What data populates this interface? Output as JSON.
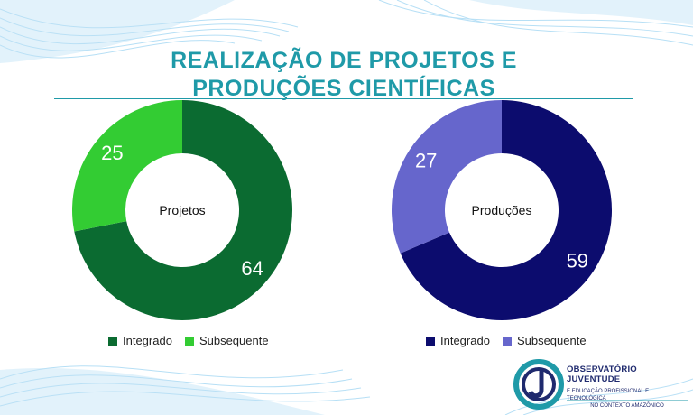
{
  "title": {
    "line1": "REALIZAÇÃO DE PROJETOS E",
    "line2": "PRODUÇÕES CIENTÍFICAS"
  },
  "colors": {
    "accent": "#1f9aa8",
    "projetos_integrado": "#0b6b31",
    "projetos_subsequente": "#33cc33",
    "producoes_integrado": "#0c0c6e",
    "producoes_subsequente": "#6666cc"
  },
  "chart_data": [
    {
      "type": "pie",
      "donut": true,
      "center_label": "Projetos",
      "categories": [
        "Integrado",
        "Subsequente"
      ],
      "values": [
        64,
        25
      ],
      "colors": [
        "#0b6b31",
        "#33cc33"
      ],
      "legend_position": "bottom"
    },
    {
      "type": "pie",
      "donut": true,
      "center_label": "Produções",
      "categories": [
        "Integrado",
        "Subsequente"
      ],
      "values": [
        59,
        27
      ],
      "colors": [
        "#0c0c6e",
        "#6666cc"
      ],
      "legend_position": "bottom"
    }
  ],
  "logo": {
    "line1": "OBSERVATÓRIO JUVENTUDE",
    "line2": "E EDUCAÇÃO PROFISSIONAL E TECNOLÓGICA",
    "line3": "NO CONTEXTO AMAZÔNICO"
  }
}
